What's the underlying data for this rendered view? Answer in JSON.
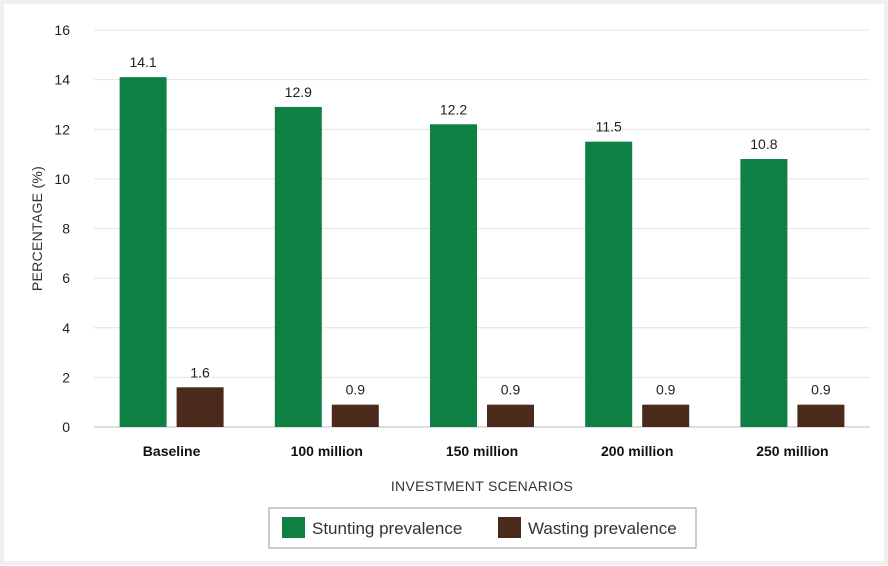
{
  "chart_data": {
    "type": "bar",
    "categories": [
      "Baseline",
      "100 million",
      "150 million",
      "200 million",
      "250 million"
    ],
    "series": [
      {
        "name": "Stunting prevalence",
        "values": [
          14.1,
          12.9,
          12.2,
          11.5,
          10.8
        ],
        "color": "#0f8043"
      },
      {
        "name": "Wasting prevalence",
        "values": [
          1.6,
          0.9,
          0.9,
          0.9,
          0.9
        ],
        "color": "#4a2a1a"
      }
    ],
    "title": "",
    "xlabel": "INVESTMENT SCENARIOS",
    "ylabel": "PERCENTAGE (%)",
    "ylim": [
      0,
      16
    ],
    "yticks": [
      0,
      2,
      4,
      6,
      8,
      10,
      12,
      14,
      16
    ],
    "grid": true,
    "legend": "bottom-center",
    "data_labels": true
  }
}
